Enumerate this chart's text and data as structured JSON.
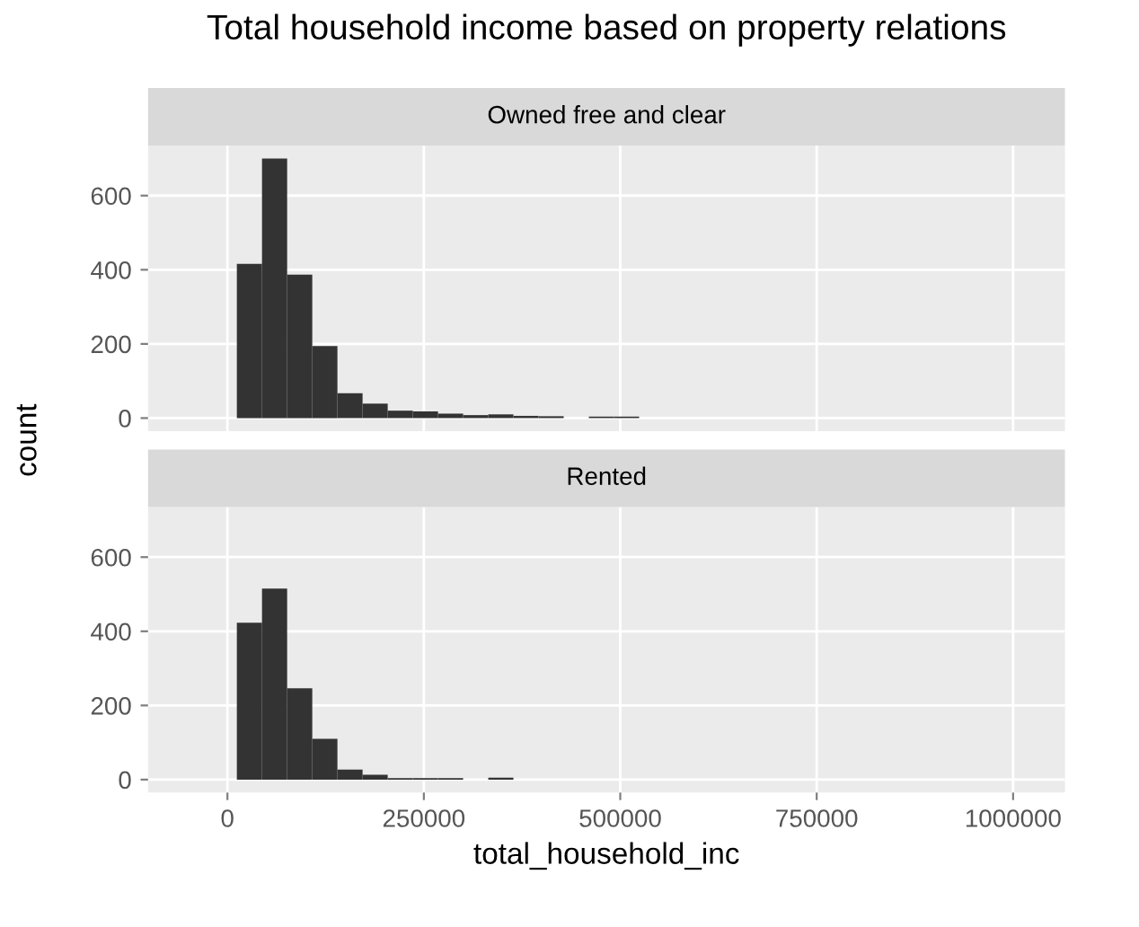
{
  "chart_data": [
    {
      "type": "histogram",
      "title": "Total household income based on property relations",
      "subtitle": "Owned free and clear",
      "ylabel": "count",
      "bins": [
        12000,
        44000,
        76000,
        108000,
        140000,
        172000,
        204000,
        236000,
        268000,
        300000,
        332000,
        364000,
        396000,
        428000,
        460000,
        492000,
        524000
      ],
      "values": [
        416,
        700,
        387,
        194,
        67,
        39,
        20,
        18,
        12,
        8,
        10,
        6,
        5,
        0,
        4,
        4
      ],
      "color": "#333333",
      "xlim": [
        -101000,
        1066000
      ],
      "xticks": [
        0,
        250000,
        500000,
        750000,
        1000000
      ],
      "ylim": [
        -35,
        735
      ],
      "yticks": [
        0,
        200,
        400,
        600
      ],
      "grid": true,
      "tick_labels": "y"
    },
    {
      "type": "histogram",
      "subtitle": "Rented",
      "xlabel": "total_household_inc",
      "bins": [
        12000,
        44000,
        76000,
        108000,
        140000,
        172000,
        204000,
        236000,
        268000,
        300000,
        332000,
        364000
      ],
      "values": [
        423,
        515,
        246,
        110,
        27,
        13,
        4,
        4,
        4,
        0,
        5
      ],
      "color": "#333333",
      "xlim": [
        -101000,
        1066000
      ],
      "xticks": [
        0,
        250000,
        500000,
        750000,
        1000000
      ],
      "ylim": [
        -35,
        735
      ],
      "yticks": [
        0,
        200,
        400,
        600
      ],
      "grid": true
    }
  ]
}
